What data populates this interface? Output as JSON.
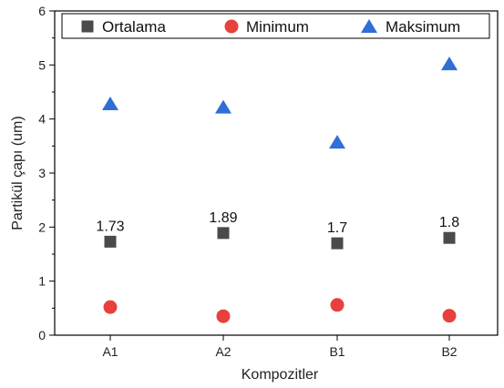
{
  "chart_data": {
    "type": "scatter",
    "categories": [
      "A1",
      "A2",
      "B1",
      "B2"
    ],
    "series": [
      {
        "name": "Ortalama",
        "values": [
          1.73,
          1.89,
          1.7,
          1.8
        ],
        "color": "#4a4a4a",
        "marker": "square",
        "labels": [
          "1.73",
          "1.89",
          "1.7",
          "1.8"
        ]
      },
      {
        "name": "Minimum",
        "values": [
          0.52,
          0.35,
          0.56,
          0.36
        ],
        "color": "#e8403d",
        "marker": "circle"
      },
      {
        "name": "Maksimum",
        "values": [
          4.28,
          4.22,
          3.57,
          5.02
        ],
        "color": "#2f6fd6",
        "marker": "triangle"
      }
    ],
    "xlabel": "Kompozitler",
    "ylabel": "Partikül çapı (um)",
    "ylim": [
      0,
      6
    ],
    "yticks": [
      "0",
      "1",
      "2",
      "3",
      "4",
      "5",
      "6"
    ],
    "grid": false,
    "legend": "top"
  }
}
